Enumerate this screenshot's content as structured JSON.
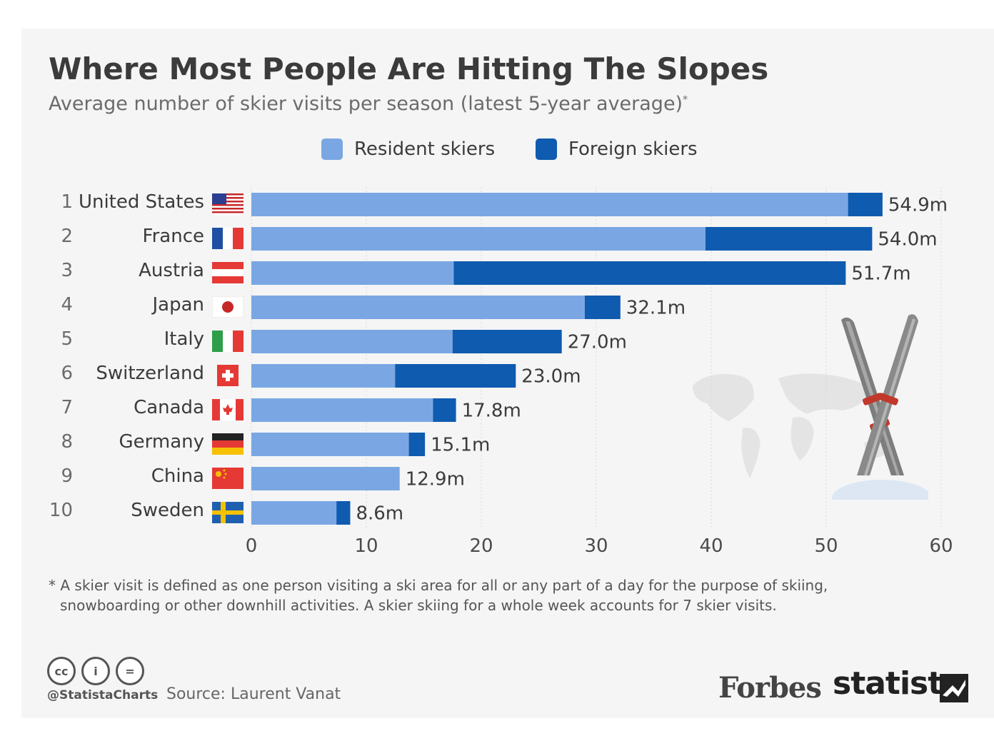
{
  "title": "Where Most People Are Hitting The Slopes",
  "subtitle": "Average number of skier visits per season (latest 5-year average)",
  "subtitle_mark": "*",
  "legend": {
    "resident": "Resident skiers",
    "foreign": "Foreign skiers"
  },
  "colors": {
    "resident": "#7aa7e3",
    "foreign": "#0f5bb0",
    "grid": "#d9d9d9",
    "text": "#3b3b3b"
  },
  "chart_data": {
    "type": "bar",
    "orientation": "horizontal",
    "stacked": true,
    "title": "Where Most People Are Hitting The Slopes",
    "xlabel": "",
    "ylabel": "",
    "xlim": [
      0,
      60
    ],
    "x_ticks": [
      "0",
      "10",
      "20",
      "30",
      "40",
      "50",
      "60"
    ],
    "grid": true,
    "categories": [
      "United States",
      "France",
      "Austria",
      "Japan",
      "Italy",
      "Switzerland",
      "Canada",
      "Germany",
      "China",
      "Sweden"
    ],
    "ranks": [
      "1",
      "2",
      "3",
      "4",
      "5",
      "6",
      "7",
      "8",
      "9",
      "10"
    ],
    "series": [
      {
        "name": "Resident skiers",
        "values": [
          51.9,
          39.5,
          17.6,
          29.0,
          17.5,
          12.5,
          15.8,
          13.7,
          12.9,
          7.4
        ]
      },
      {
        "name": "Foreign skiers",
        "values": [
          3.0,
          14.5,
          34.1,
          3.1,
          9.5,
          10.5,
          2.0,
          1.4,
          0.0,
          1.2
        ]
      }
    ],
    "total_labels": [
      "54.9m",
      "54.0m",
      "51.7m",
      "32.1m",
      "27.0m",
      "23.0m",
      "17.8m",
      "15.1m",
      "12.9m",
      "8.6m"
    ],
    "totals": [
      54.9,
      54.0,
      51.7,
      32.1,
      27.0,
      23.0,
      17.8,
      15.1,
      12.9,
      8.6
    ]
  },
  "footnote": {
    "line1": "* A skier visit is defined as one person visiting a ski area for all or any part of a day for the purpose of skiing,",
    "line2": "snowboarding or other downhill activities. A skier skiing for a whole week accounts for 7 skier visits."
  },
  "footer": {
    "cc": "cc",
    "by": "i",
    "nd": "=",
    "handle": "@StatistaCharts",
    "source": "Source: Laurent Vanat",
    "forbes": "Forbes",
    "statista": "statista"
  }
}
